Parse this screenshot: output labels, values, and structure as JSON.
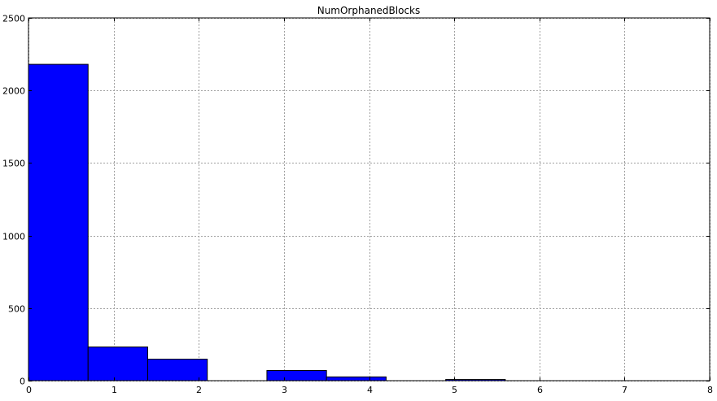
{
  "chart_data": {
    "type": "bar",
    "title": "NumOrphanedBlocks",
    "xlabel": "",
    "ylabel": "",
    "xlim": [
      0,
      8
    ],
    "ylim": [
      0,
      2500
    ],
    "xticks": [
      "0",
      "1",
      "2",
      "3",
      "4",
      "5",
      "6",
      "7",
      "8"
    ],
    "yticks": [
      "0",
      "500",
      "1000",
      "1500",
      "2000",
      "2500"
    ],
    "grid": true,
    "bins": [
      {
        "x0": 0.0,
        "x1": 0.7,
        "value": 2180
      },
      {
        "x0": 0.7,
        "x1": 1.4,
        "value": 232
      },
      {
        "x0": 1.4,
        "x1": 2.1,
        "value": 148
      },
      {
        "x0": 2.1,
        "x1": 2.8,
        "value": 0
      },
      {
        "x0": 2.8,
        "x1": 3.5,
        "value": 70
      },
      {
        "x0": 3.5,
        "x1": 4.2,
        "value": 26
      },
      {
        "x0": 4.2,
        "x1": 4.9,
        "value": 0
      },
      {
        "x0": 4.9,
        "x1": 5.6,
        "value": 8
      }
    ],
    "colors": {
      "bar_fill": "#0000ff",
      "bar_edge": "#000000",
      "grid": "#a0a0a0",
      "axes": "#000000"
    }
  }
}
